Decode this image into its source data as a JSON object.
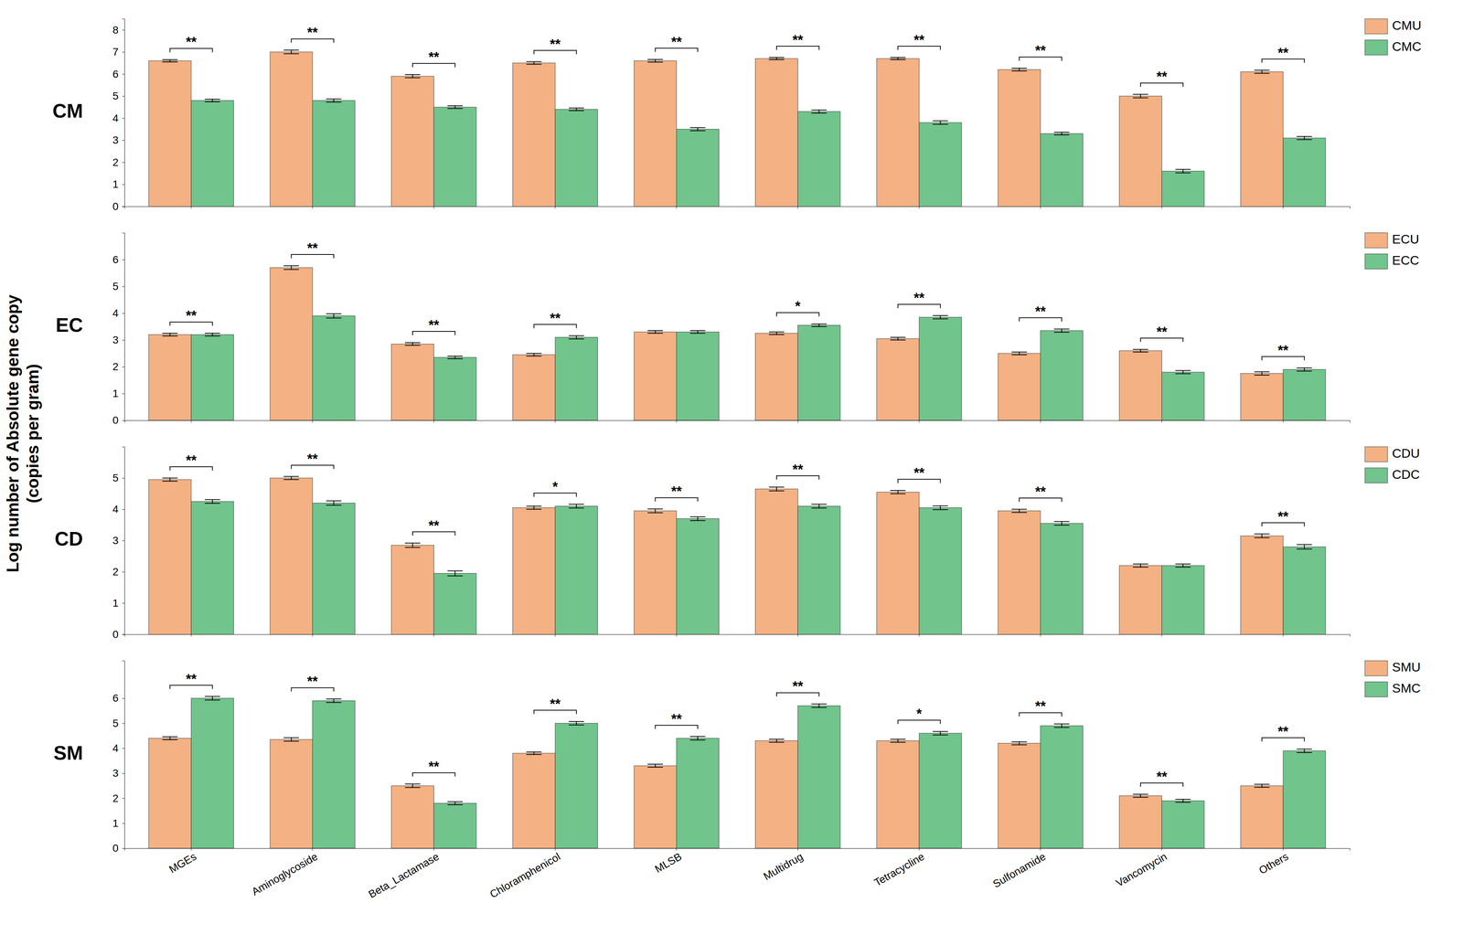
{
  "chart_data": [
    {
      "type": "bar",
      "title": "CM",
      "ylabel": "Log number of Absolute gene copy\n(copies per gram)",
      "categories": [
        "MGEs",
        "Aminoglycoside",
        "Beta_Lactamase",
        "Chloramphenicol",
        "MLSB",
        "Multidrug",
        "Tetracycline",
        "Sulfonamide",
        "Vancomycin",
        "Others"
      ],
      "series": [
        {
          "name": "CMU",
          "color": "#F4B183",
          "values": [
            6.6,
            7.0,
            5.9,
            6.5,
            6.6,
            6.7,
            6.7,
            6.2,
            5.0,
            6.1
          ],
          "errors": [
            0.05,
            0.08,
            0.07,
            0.06,
            0.06,
            0.05,
            0.05,
            0.06,
            0.08,
            0.07
          ]
        },
        {
          "name": "CMC",
          "color": "#70C48C",
          "values": [
            4.8,
            4.8,
            4.5,
            4.4,
            3.5,
            4.3,
            3.8,
            3.3,
            1.6,
            3.1
          ],
          "errors": [
            0.06,
            0.07,
            0.06,
            0.06,
            0.07,
            0.07,
            0.08,
            0.06,
            0.08,
            0.07
          ]
        }
      ],
      "significance": [
        "**",
        "**",
        "**",
        "**",
        "**",
        "**",
        "**",
        "**",
        "**",
        "**"
      ],
      "ylim": [
        0,
        8.5
      ],
      "yticks": [
        0,
        1,
        2,
        3,
        4,
        5,
        6,
        7,
        8
      ],
      "legend": "upper right",
      "grid": false,
      "tick_labels": "y"
    },
    {
      "type": "bar",
      "title": "EC",
      "categories": [
        "MGEs",
        "Aminoglycoside",
        "Beta_Lactamase",
        "Chloramphenicol",
        "MLSB",
        "Multidrug",
        "Tetracycline",
        "Sulfonamide",
        "Vancomycin",
        "Others"
      ],
      "series": [
        {
          "name": "ECU",
          "color": "#F4B183",
          "values": [
            3.2,
            5.7,
            2.85,
            2.45,
            3.3,
            3.25,
            3.05,
            2.5,
            2.6,
            1.75
          ],
          "errors": [
            0.05,
            0.07,
            0.05,
            0.05,
            0.05,
            0.05,
            0.05,
            0.05,
            0.05,
            0.06
          ]
        },
        {
          "name": "ECC",
          "color": "#70C48C",
          "values": [
            3.2,
            3.9,
            2.35,
            3.1,
            3.3,
            3.55,
            3.85,
            3.35,
            1.8,
            1.9
          ],
          "errors": [
            0.05,
            0.08,
            0.05,
            0.06,
            0.05,
            0.05,
            0.06,
            0.06,
            0.06,
            0.06
          ]
        }
      ],
      "significance": [
        "**",
        "**",
        "**",
        "**",
        null,
        "*",
        "**",
        "**",
        "**",
        "**"
      ],
      "ylim": [
        0,
        7.0
      ],
      "yticks": [
        0,
        1,
        2,
        3,
        4,
        5,
        6
      ],
      "legend": "upper right",
      "grid": false,
      "tick_labels": "y"
    },
    {
      "type": "bar",
      "title": "CD",
      "categories": [
        "MGEs",
        "Aminoglycoside",
        "Beta_Lactamase",
        "Chloramphenicol",
        "MLSB",
        "Multidrug",
        "Tetracycline",
        "Sulfonamide",
        "Vancomycin",
        "Others"
      ],
      "series": [
        {
          "name": "CDU",
          "color": "#F4B183",
          "values": [
            4.95,
            5.0,
            2.85,
            4.05,
            3.95,
            4.65,
            4.55,
            3.95,
            2.2,
            3.15
          ],
          "errors": [
            0.05,
            0.05,
            0.07,
            0.05,
            0.06,
            0.06,
            0.05,
            0.05,
            0.05,
            0.06
          ]
        },
        {
          "name": "CDC",
          "color": "#70C48C",
          "values": [
            4.25,
            4.2,
            1.95,
            4.1,
            3.7,
            4.1,
            4.05,
            3.55,
            2.2,
            2.8
          ],
          "errors": [
            0.06,
            0.07,
            0.08,
            0.06,
            0.06,
            0.06,
            0.06,
            0.06,
            0.05,
            0.07
          ]
        }
      ],
      "significance": [
        "**",
        "**",
        "**",
        "*",
        "**",
        "**",
        "**",
        "**",
        null,
        "**"
      ],
      "ylim": [
        0,
        6.0
      ],
      "yticks": [
        0,
        1,
        2,
        3,
        4,
        5
      ],
      "legend": "upper right",
      "grid": false,
      "tick_labels": "y"
    },
    {
      "type": "bar",
      "title": "SM",
      "categories": [
        "MGEs",
        "Aminoglycoside",
        "Beta_Lactamase",
        "Chloramphenicol",
        "MLSB",
        "Multidrug",
        "Tetracycline",
        "Sulfonamide",
        "Vancomycin",
        "Others"
      ],
      "series": [
        {
          "name": "SMU",
          "color": "#F4B183",
          "values": [
            4.4,
            4.35,
            2.5,
            3.8,
            3.3,
            4.3,
            4.3,
            4.2,
            2.1,
            2.5
          ],
          "errors": [
            0.06,
            0.07,
            0.07,
            0.05,
            0.06,
            0.06,
            0.06,
            0.06,
            0.06,
            0.06
          ]
        },
        {
          "name": "SMC",
          "color": "#70C48C",
          "values": [
            6.0,
            5.9,
            1.8,
            5.0,
            4.4,
            5.7,
            4.6,
            4.9,
            1.9,
            3.9
          ],
          "errors": [
            0.07,
            0.07,
            0.06,
            0.07,
            0.07,
            0.07,
            0.07,
            0.07,
            0.06,
            0.07
          ]
        }
      ],
      "significance": [
        "**",
        "**",
        "**",
        "**",
        "**",
        "**",
        "*",
        "**",
        "**",
        "**"
      ],
      "ylim": [
        0,
        7.5
      ],
      "yticks": [
        0,
        1,
        2,
        3,
        4,
        5,
        6
      ],
      "legend": "upper right",
      "grid": false,
      "tick_labels": true
    }
  ]
}
